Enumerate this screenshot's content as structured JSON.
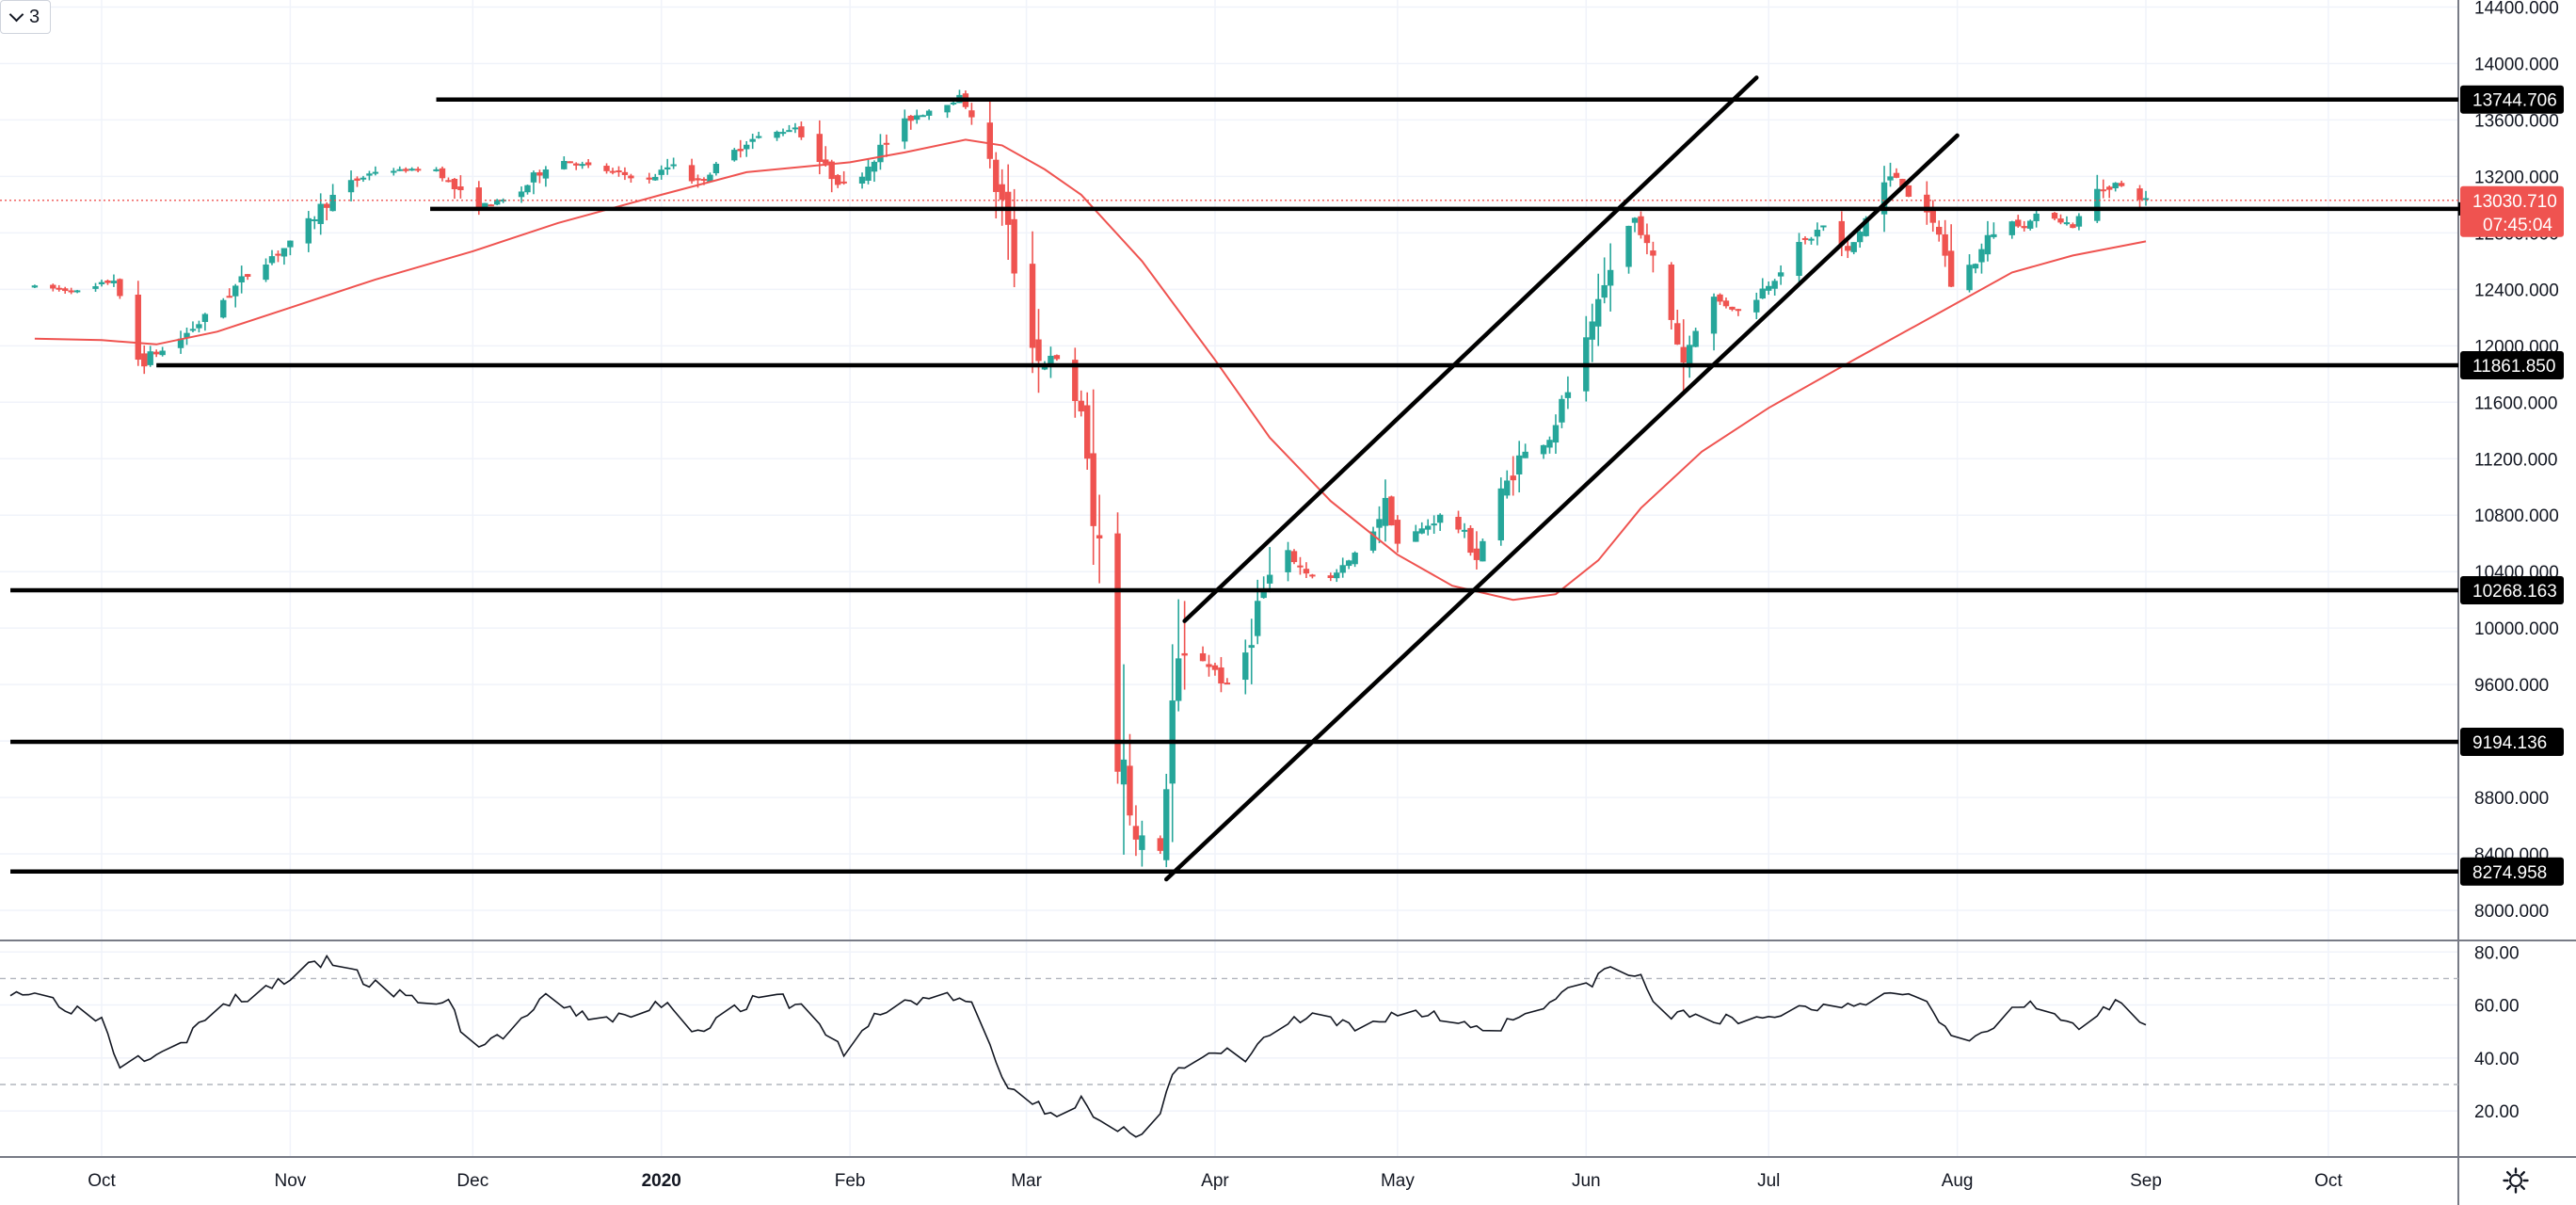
{
  "toolbar": {
    "interval_label": "3",
    "interval_icon": "chevron-down-icon"
  },
  "footer": {
    "settings_icon": "gear-icon"
  },
  "colors": {
    "up": "#26a69a",
    "down": "#ef5350",
    "ma": "#ef5350",
    "rsi": "#131722",
    "level_line": "#000000",
    "last_price": "#ef5350",
    "grid": "#f0f3fa"
  },
  "chart_data": [
    {
      "type": "candlestick",
      "title": "",
      "x_tick_labels": [
        "Oct",
        "Nov",
        "Dec",
        "2020",
        "Feb",
        "Mar",
        "Apr",
        "May",
        "Jun",
        "Jul",
        "Aug",
        "Sep",
        "Oct"
      ],
      "x_tick_dates": [
        "2019-10-01",
        "2019-11-01",
        "2019-12-01",
        "2020-01-01",
        "2020-02-01",
        "2020-03-01",
        "2020-04-01",
        "2020-05-01",
        "2020-06-01",
        "2020-07-01",
        "2020-08-01",
        "2020-09-01",
        "2020-10-01"
      ],
      "y_tick_labels": [
        "8000.000",
        "8400.000",
        "8800.000",
        "9200.000",
        "9600.000",
        "10000.000",
        "10400.000",
        "10800.000",
        "11200.000",
        "11600.000",
        "12000.000",
        "12400.000",
        "12800.000",
        "13200.000",
        "13600.000",
        "14000.000",
        "14400.000"
      ],
      "y_range": [
        7800,
        14450
      ],
      "grid": true,
      "anchors": [
        [
          "2019-09-20",
          12420
        ],
        [
          "2019-09-28",
          12380
        ],
        [
          "2019-10-03",
          12470
        ],
        [
          "2019-10-07",
          11900
        ],
        [
          "2019-10-12",
          11980
        ],
        [
          "2019-10-18",
          12200
        ],
        [
          "2019-10-26",
          12550
        ],
        [
          "2019-11-02",
          12750
        ],
        [
          "2019-11-06",
          12980
        ],
        [
          "2019-11-10",
          13130
        ],
        [
          "2019-11-15",
          13240
        ],
        [
          "2019-11-25",
          13250
        ],
        [
          "2019-12-01",
          12980
        ],
        [
          "2019-12-08",
          13050
        ],
        [
          "2019-12-14",
          13330
        ],
        [
          "2019-12-22",
          13250
        ],
        [
          "2019-12-30",
          13170
        ],
        [
          "2020-01-03",
          13300
        ],
        [
          "2020-01-07",
          13150
        ],
        [
          "2020-01-15",
          13450
        ],
        [
          "2020-01-23",
          13550
        ],
        [
          "2020-01-28",
          13250
        ],
        [
          "2020-02-01",
          13100
        ],
        [
          "2020-02-05",
          13350
        ],
        [
          "2020-02-11",
          13620
        ],
        [
          "2020-02-19",
          13760
        ],
        [
          "2020-02-21",
          13640
        ],
        [
          "2020-02-26",
          13000
        ],
        [
          "2020-02-28",
          12570
        ],
        [
          "2020-03-03",
          11900
        ],
        [
          "2020-03-06",
          11900
        ],
        [
          "2020-03-08",
          11700
        ],
        [
          "2020-03-10",
          11550
        ],
        [
          "2020-03-12",
          10700
        ],
        [
          "2020-03-14",
          10480
        ],
        [
          "2020-03-16",
          9200
        ],
        [
          "2020-03-18",
          8750
        ],
        [
          "2020-03-20",
          8500
        ],
        [
          "2020-03-23",
          8400
        ],
        [
          "2020-03-25",
          9450
        ],
        [
          "2020-03-28",
          9850
        ],
        [
          "2020-04-01",
          9700
        ],
        [
          "2020-04-04",
          9500
        ],
        [
          "2020-04-08",
          10150
        ],
        [
          "2020-04-12",
          10550
        ],
        [
          "2020-04-16",
          10400
        ],
        [
          "2020-04-20",
          10350
        ],
        [
          "2020-04-25",
          10550
        ],
        [
          "2020-04-29",
          10880
        ],
        [
          "2020-05-01",
          10600
        ],
        [
          "2020-05-05",
          10700
        ],
        [
          "2020-05-09",
          10820
        ],
        [
          "2020-05-12",
          10650
        ],
        [
          "2020-05-14",
          10500
        ],
        [
          "2020-05-17",
          10850
        ],
        [
          "2020-05-21",
          11200
        ],
        [
          "2020-05-26",
          11350
        ],
        [
          "2020-05-30",
          11800
        ],
        [
          "2020-06-02",
          12100
        ],
        [
          "2020-06-06",
          12700
        ],
        [
          "2020-06-09",
          12900
        ],
        [
          "2020-06-13",
          12500
        ],
        [
          "2020-06-17",
          11900
        ],
        [
          "2020-06-21",
          12350
        ],
        [
          "2020-06-26",
          12250
        ],
        [
          "2020-06-29",
          12350
        ],
        [
          "2020-07-02",
          12500
        ],
        [
          "2020-07-06",
          12700
        ],
        [
          "2020-07-10",
          12850
        ],
        [
          "2020-07-14",
          12650
        ],
        [
          "2020-07-17",
          12900
        ],
        [
          "2020-07-20",
          13150
        ],
        [
          "2020-07-22",
          13200
        ],
        [
          "2020-07-26",
          12950
        ],
        [
          "2020-07-29",
          12800
        ],
        [
          "2020-07-31",
          12450
        ],
        [
          "2020-08-04",
          12600
        ],
        [
          "2020-08-08",
          12900
        ],
        [
          "2020-08-12",
          12850
        ],
        [
          "2020-08-15",
          12950
        ],
        [
          "2020-08-20",
          12850
        ],
        [
          "2020-08-24",
          13100
        ],
        [
          "2020-08-27",
          13150
        ],
        [
          "2020-09-01",
          13030
        ]
      ],
      "moving_average": [
        [
          "2019-09-20",
          12050
        ],
        [
          "2019-10-01",
          12040
        ],
        [
          "2019-10-10",
          12010
        ],
        [
          "2019-10-20",
          12100
        ],
        [
          "2019-11-01",
          12270
        ],
        [
          "2019-11-15",
          12470
        ],
        [
          "2019-12-01",
          12670
        ],
        [
          "2019-12-15",
          12870
        ],
        [
          "2020-01-01",
          13070
        ],
        [
          "2020-01-15",
          13230
        ],
        [
          "2020-02-01",
          13300
        ],
        [
          "2020-02-10",
          13370
        ],
        [
          "2020-02-20",
          13460
        ],
        [
          "2020-02-26",
          13420
        ],
        [
          "2020-03-04",
          13250
        ],
        [
          "2020-03-10",
          13070
        ],
        [
          "2020-03-20",
          12600
        ],
        [
          "2020-04-01",
          11900
        ],
        [
          "2020-04-10",
          11350
        ],
        [
          "2020-04-20",
          10900
        ],
        [
          "2020-05-01",
          10520
        ],
        [
          "2020-05-10",
          10300
        ],
        [
          "2020-05-20",
          10200
        ],
        [
          "2020-05-27",
          10240
        ],
        [
          "2020-06-03",
          10480
        ],
        [
          "2020-06-10",
          10850
        ],
        [
          "2020-06-20",
          11250
        ],
        [
          "2020-07-01",
          11560
        ],
        [
          "2020-07-15",
          11900
        ],
        [
          "2020-07-31",
          12280
        ],
        [
          "2020-08-10",
          12520
        ],
        [
          "2020-08-20",
          12640
        ],
        [
          "2020-09-01",
          12740
        ]
      ],
      "horizontal_levels": [
        {
          "value": 13744.706,
          "label": "13744.706",
          "from": "2019-11-25"
        },
        {
          "value": 12970,
          "label": "",
          "from": "2019-11-24"
        },
        {
          "value": 11861.85,
          "label": "11861.850",
          "from": "2019-10-10"
        },
        {
          "value": 10268.163,
          "label": "10268.163",
          "from": "2019-09-16"
        },
        {
          "value": 9194.136,
          "label": "9194.136",
          "from": "2019-09-16"
        },
        {
          "value": 8274.958,
          "label": "8274.958",
          "from": "2019-09-16"
        }
      ],
      "trend_lines": [
        [
          [
            "2020-03-27",
            10050
          ],
          [
            "2020-06-29",
            13900
          ]
        ],
        [
          [
            "2020-03-24",
            8220
          ],
          [
            "2020-08-01",
            13490
          ]
        ]
      ],
      "last_price": {
        "value": 13030.71,
        "label": "13030.710",
        "countdown": "07:45:04"
      }
    },
    {
      "type": "line",
      "title": "",
      "y_tick_labels": [
        "20.00",
        "40.00",
        "60.00",
        "80.00"
      ],
      "y_range": [
        3,
        84
      ],
      "bands": [
        30,
        70
      ],
      "anchors": [
        [
          "2019-09-16",
          66
        ],
        [
          "2019-09-22",
          63
        ],
        [
          "2019-09-27",
          58
        ],
        [
          "2019-10-01",
          55
        ],
        [
          "2019-10-04",
          38
        ],
        [
          "2019-10-09",
          42
        ],
        [
          "2019-10-15",
          48
        ],
        [
          "2019-10-21",
          60
        ],
        [
          "2019-10-27",
          65
        ],
        [
          "2019-11-02",
          72
        ],
        [
          "2019-11-08",
          77
        ],
        [
          "2019-11-14",
          68
        ],
        [
          "2019-11-21",
          62
        ],
        [
          "2019-11-27",
          61
        ],
        [
          "2019-12-01",
          43
        ],
        [
          "2019-12-07",
          50
        ],
        [
          "2019-12-13",
          62
        ],
        [
          "2019-12-19",
          56
        ],
        [
          "2019-12-27",
          55
        ],
        [
          "2020-01-02",
          62
        ],
        [
          "2020-01-06",
          50
        ],
        [
          "2020-01-12",
          57
        ],
        [
          "2020-01-19",
          64
        ],
        [
          "2020-01-25",
          58
        ],
        [
          "2020-01-31",
          42
        ],
        [
          "2020-02-05",
          55
        ],
        [
          "2020-02-11",
          62
        ],
        [
          "2020-02-18",
          63
        ],
        [
          "2020-02-22",
          58
        ],
        [
          "2020-02-26",
          32
        ],
        [
          "2020-03-03",
          22
        ],
        [
          "2020-03-06",
          20
        ],
        [
          "2020-03-10",
          24
        ],
        [
          "2020-03-14",
          11
        ],
        [
          "2020-03-18",
          12
        ],
        [
          "2020-03-22",
          14
        ],
        [
          "2020-03-25",
          34
        ],
        [
          "2020-04-02",
          42
        ],
        [
          "2020-04-06",
          40
        ],
        [
          "2020-04-12",
          53
        ],
        [
          "2020-04-18",
          55
        ],
        [
          "2020-04-25",
          50
        ],
        [
          "2020-05-01",
          58
        ],
        [
          "2020-05-07",
          56
        ],
        [
          "2020-05-12",
          53
        ],
        [
          "2020-05-17",
          51
        ],
        [
          "2020-05-24",
          60
        ],
        [
          "2020-05-31",
          66
        ],
        [
          "2020-06-05",
          74
        ],
        [
          "2020-06-10",
          70
        ],
        [
          "2020-06-14",
          55
        ],
        [
          "2020-06-20",
          57
        ],
        [
          "2020-06-27",
          52
        ],
        [
          "2020-07-04",
          58
        ],
        [
          "2020-07-11",
          60
        ],
        [
          "2020-07-19",
          63
        ],
        [
          "2020-07-24",
          66
        ],
        [
          "2020-07-28",
          60
        ],
        [
          "2020-08-01",
          43
        ],
        [
          "2020-08-07",
          52
        ],
        [
          "2020-08-12",
          60
        ],
        [
          "2020-08-17",
          56
        ],
        [
          "2020-08-22",
          52
        ],
        [
          "2020-08-27",
          60
        ],
        [
          "2020-09-01",
          55
        ]
      ]
    }
  ]
}
